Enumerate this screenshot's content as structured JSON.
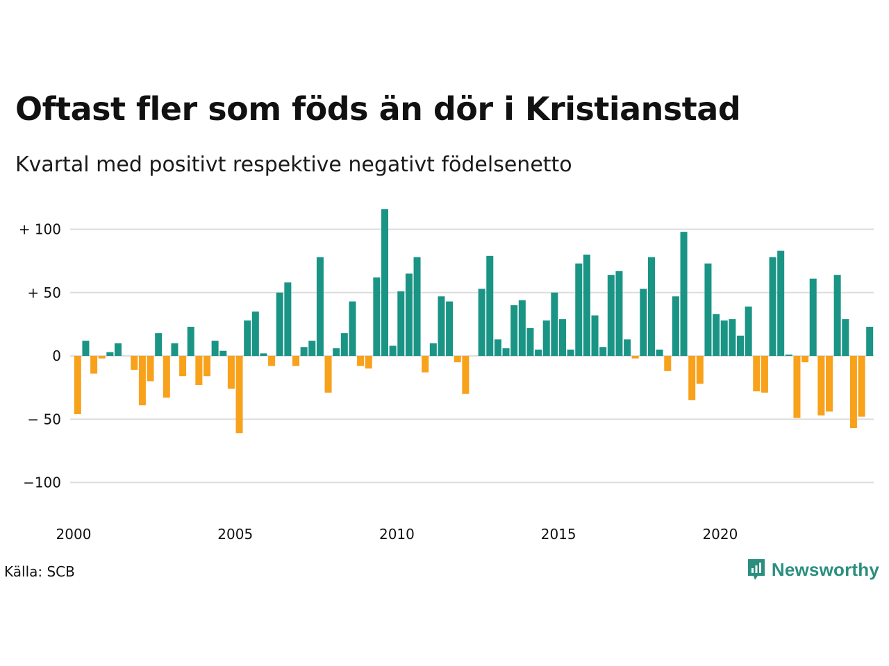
{
  "title": "Oftast fler som föds än dör i Kristianstad",
  "subtitle": "Kvartal med positivt respektive negativt födelsenetto",
  "source": "Källa: SCB",
  "brand": "Newsworthy",
  "colors": {
    "positive": "#1a9485",
    "negative": "#f8a11b",
    "grid": "#dddddd",
    "brand": "#2a8f7f"
  },
  "icons": {
    "logo": "newsworthy-logo-icon"
  },
  "chart_data": {
    "type": "bar",
    "x_start": "2000",
    "period": "quarter",
    "ylim": [
      -120,
      120
    ],
    "yticks": [
      {
        "value": 100,
        "label": "+ 100"
      },
      {
        "value": 50,
        "label": "+  50"
      },
      {
        "value": 0,
        "label": "0"
      },
      {
        "value": -50,
        "label": "− 50"
      },
      {
        "value": -100,
        "label": "−100"
      }
    ],
    "xticks": [
      "2000",
      "2005",
      "2010",
      "2015",
      "2020"
    ],
    "values": [
      -46,
      12,
      -14,
      -2,
      3,
      10,
      0,
      -11,
      -39,
      -20,
      18,
      -33,
      10,
      -16,
      23,
      -23,
      -16,
      12,
      4,
      -26,
      -61,
      28,
      35,
      2,
      -8,
      50,
      58,
      -8,
      7,
      12,
      78,
      -29,
      6,
      18,
      43,
      -8,
      -10,
      62,
      116,
      8,
      51,
      65,
      78,
      -13,
      10,
      47,
      43,
      -5,
      -30,
      0,
      53,
      79,
      13,
      6,
      40,
      44,
      22,
      5,
      28,
      50,
      29,
      5,
      73,
      80,
      32,
      7,
      64,
      67,
      13,
      -2,
      53,
      78,
      5,
      -12,
      47,
      98,
      -35,
      -22,
      73,
      33,
      28,
      29,
      16,
      39,
      -28,
      -29,
      78,
      83,
      1,
      -49,
      -5,
      61,
      -47,
      -44,
      64,
      29,
      -57,
      -48,
      23
    ]
  }
}
